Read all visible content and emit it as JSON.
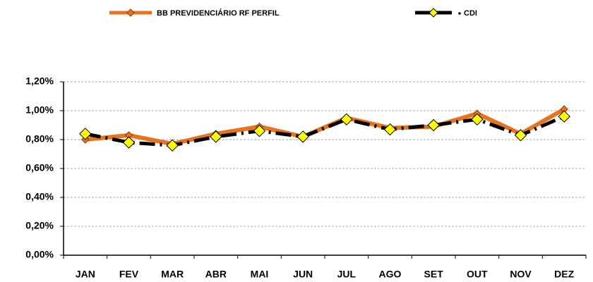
{
  "chart_data": {
    "type": "line",
    "categories": [
      "JAN",
      "FEV",
      "MAR",
      "ABR",
      "MAI",
      "JUN",
      "JUL",
      "AGO",
      "SET",
      "OUT",
      "NOV",
      "DEZ"
    ],
    "series": [
      {
        "name": "BB PREVIDENCIÁRIO RF PERFIL",
        "color": "#e8731d",
        "values": [
          0.8,
          0.83,
          0.77,
          0.84,
          0.89,
          0.82,
          0.95,
          0.88,
          0.89,
          0.98,
          0.84,
          1.01
        ]
      },
      {
        "name": "CDI",
        "color": "#000000",
        "values": [
          0.84,
          0.78,
          0.76,
          0.82,
          0.86,
          0.82,
          0.94,
          0.87,
          0.9,
          0.94,
          0.83,
          0.96
        ]
      }
    ],
    "ylim": [
      0,
      1.2
    ],
    "yticks": [
      {
        "value": 0,
        "label": "0,00%"
      },
      {
        "value": 0.2,
        "label": "0,20%"
      },
      {
        "value": 0.4,
        "label": "0,40%"
      },
      {
        "value": 0.6,
        "label": "0,60%"
      },
      {
        "value": 0.8,
        "label": "0,80%"
      },
      {
        "value": 1.0,
        "label": "1,00%"
      },
      {
        "value": 1.2,
        "label": "1,20%"
      }
    ],
    "grid": true
  }
}
